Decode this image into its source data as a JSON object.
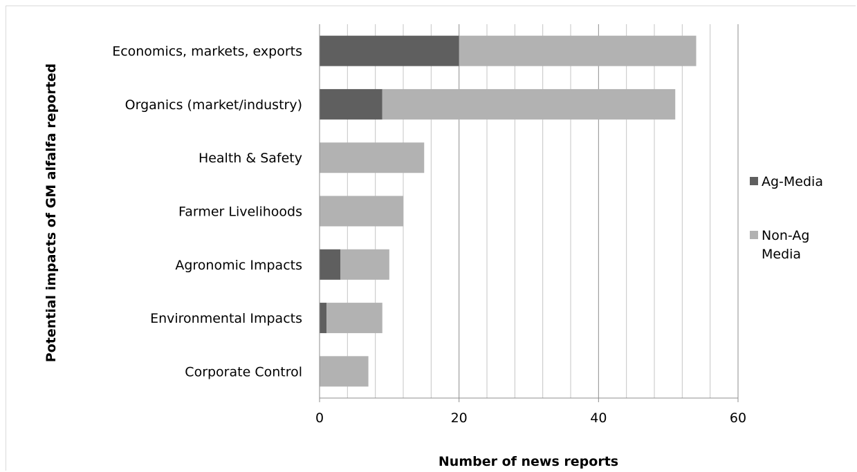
{
  "chart_data": {
    "type": "bar",
    "orientation": "horizontal",
    "stacked": true,
    "categories": [
      "Economics, markets, exports",
      "Organics (market/industry)",
      "Health & Safety",
      "Farmer Livelihoods",
      "Agronomic Impacts",
      "Environmental Impacts",
      "Corporate Control"
    ],
    "series": [
      {
        "name": "Ag-Media",
        "values": [
          20,
          9,
          0,
          0,
          3,
          1,
          0
        ],
        "color": "#5f5f5f"
      },
      {
        "name": "Non-Ag Media",
        "values": [
          34,
          42,
          15,
          12,
          7,
          8,
          7
        ],
        "color": "#b2b2b2"
      }
    ],
    "xlabel": "Number of news reports",
    "ylabel": "Potential impacts of GM alfalfa reported",
    "xlim": [
      0,
      60
    ],
    "xticks": [
      "0",
      "20",
      "40",
      "60"
    ],
    "minor_grid_step": 4,
    "grid": true,
    "legend_position": "right",
    "legend_labels": [
      {
        "color": "#5f5f5f",
        "lines": [
          "Ag-Media"
        ]
      },
      {
        "color": "#b2b2b2",
        "lines": [
          "Non-Ag",
          "Media"
        ]
      }
    ]
  }
}
